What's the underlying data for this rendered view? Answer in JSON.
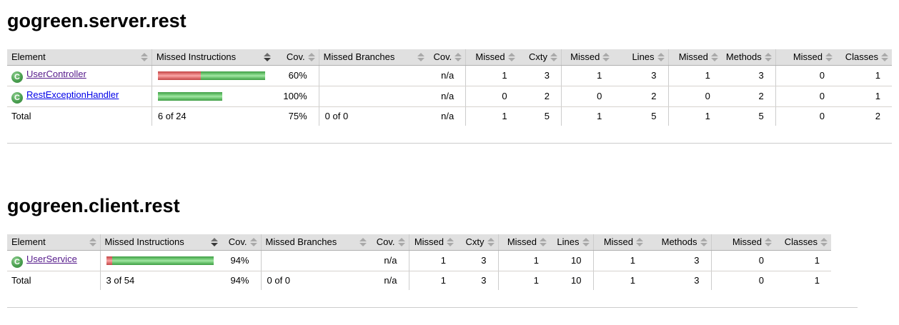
{
  "icons": {
    "class_glyph": "C"
  },
  "sections": [
    {
      "title": "gogreen.server.rest",
      "columns": {
        "element": "Element",
        "missed_instructions": "Missed Instructions",
        "cov1": "Cov.",
        "missed_branches": "Missed Branches",
        "cov2": "Cov.",
        "missed1": "Missed",
        "cxty": "Cxty",
        "missed2": "Missed",
        "lines": "Lines",
        "missed3": "Missed",
        "methods": "Methods",
        "missed4": "Missed",
        "classes": "Classes"
      },
      "rows": [
        {
          "name": "UserController",
          "bar": {
            "red": 60,
            "green": 90
          },
          "cov": "60%",
          "branch_cov": "n/a",
          "missed_cxty": "1",
          "cxty": "3",
          "missed_lines": "1",
          "lines": "3",
          "missed_methods": "1",
          "methods": "3",
          "missed_classes": "0",
          "classes": "1"
        },
        {
          "name": "RestExceptionHandler",
          "bar": {
            "red": 0,
            "green": 90
          },
          "cov": "100%",
          "branch_cov": "n/a",
          "missed_cxty": "0",
          "cxty": "2",
          "missed_lines": "0",
          "lines": "2",
          "missed_methods": "0",
          "methods": "2",
          "missed_classes": "0",
          "classes": "1"
        }
      ],
      "total": {
        "label": "Total",
        "instructions": "6 of 24",
        "cov": "75%",
        "branches": "0 of 0",
        "branch_cov": "n/a",
        "missed_cxty": "1",
        "cxty": "5",
        "missed_lines": "1",
        "lines": "5",
        "missed_methods": "1",
        "methods": "5",
        "missed_classes": "0",
        "classes": "2"
      }
    },
    {
      "title": "gogreen.client.rest",
      "columns": {
        "element": "Element",
        "missed_instructions": "Missed Instructions",
        "cov1": "Cov.",
        "missed_branches": "Missed Branches",
        "cov2": "Cov.",
        "missed1": "Missed",
        "cxty": "Cxty",
        "missed2": "Missed",
        "lines": "Lines",
        "missed3": "Missed",
        "methods": "Methods",
        "missed4": "Missed",
        "classes": "Classes"
      },
      "rows": [
        {
          "name": "UserService",
          "bar": {
            "red": 8,
            "green": 142
          },
          "cov": "94%",
          "branch_cov": "n/a",
          "missed_cxty": "1",
          "cxty": "3",
          "missed_lines": "1",
          "lines": "10",
          "missed_methods": "1",
          "methods": "3",
          "missed_classes": "0",
          "classes": "1"
        }
      ],
      "total": {
        "label": "Total",
        "instructions": "3 of 54",
        "cov": "94%",
        "branches": "0 of 0",
        "branch_cov": "n/a",
        "missed_cxty": "1",
        "cxty": "3",
        "missed_lines": "1",
        "lines": "10",
        "missed_methods": "1",
        "methods": "3",
        "missed_classes": "0",
        "classes": "1"
      }
    }
  ]
}
